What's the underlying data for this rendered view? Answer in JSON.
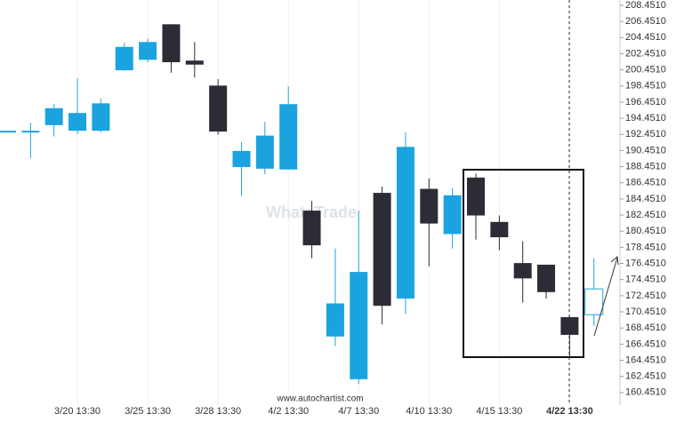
{
  "chart_data": {
    "type": "candlestick",
    "categories": [
      null,
      null,
      null,
      "3/20 13:30",
      null,
      null,
      "3/25 13:30",
      null,
      null,
      "3/28 13:30",
      null,
      null,
      "4/2 13:30",
      null,
      null,
      "4/7 13:30",
      null,
      null,
      "4/10 13:30",
      null,
      null,
      "4/15 13:30",
      null,
      null,
      "4/22 13:30"
    ],
    "open": [
      192.9,
      192.7,
      193.6,
      192.9,
      192.9,
      200.4,
      201.7,
      206.1,
      201.6,
      198.5,
      188.4,
      188.2,
      188.1,
      183.0,
      167.4,
      162.1,
      185.2,
      172.1,
      185.7,
      180.1,
      187.1,
      181.6,
      176.5,
      176.3,
      169.8
    ],
    "high": [
      192.9,
      193.9,
      196.2,
      199.4,
      196.9,
      203.8,
      204.3,
      206.1,
      203.9,
      199.3,
      191.5,
      194.0,
      198.4,
      184.2,
      178.3,
      183.0,
      186.0,
      192.7,
      187.0,
      185.8,
      187.6,
      182.4,
      179.2,
      176.3,
      169.8
    ],
    "low": [
      192.9,
      189.5,
      192.2,
      192.5,
      192.7,
      200.3,
      201.4,
      200.1,
      199.5,
      192.4,
      184.8,
      187.5,
      188.1,
      177.1,
      166.2,
      161.5,
      168.9,
      170.2,
      176.1,
      178.3,
      179.4,
      178.1,
      171.6,
      172.1,
      164.9
    ],
    "close": [
      192.9,
      192.9,
      195.7,
      195.1,
      196.3,
      203.3,
      203.9,
      201.4,
      201.1,
      192.8,
      190.4,
      192.3,
      196.2,
      178.7,
      171.5,
      175.4,
      171.2,
      190.9,
      181.4,
      184.9,
      182.4,
      179.7,
      174.6,
      172.9,
      167.6
    ],
    "projection": {
      "open": 170.1,
      "high": 177.1,
      "low": 168.7,
      "close": 173.3
    },
    "up_color": "#1ba3e0",
    "down_color": "#2b2c35",
    "ylim": [
      158.45,
      209.11
    ],
    "yticks": [
      {
        "value": 160.451,
        "label": "160.4510"
      },
      {
        "value": 162.451,
        "label": "162.4510"
      },
      {
        "value": 164.451,
        "label": "164.4510"
      },
      {
        "value": 166.451,
        "label": "166.4510"
      },
      {
        "value": 168.451,
        "label": "168.4510"
      },
      {
        "value": 170.451,
        "label": "170.4510"
      },
      {
        "value": 172.451,
        "label": "172.4510"
      },
      {
        "value": 174.451,
        "label": "174.4510"
      },
      {
        "value": 176.451,
        "label": "176.4510"
      },
      {
        "value": 178.451,
        "label": "178.4510"
      },
      {
        "value": 180.451,
        "label": "180.4510"
      },
      {
        "value": 182.451,
        "label": "182.4510"
      },
      {
        "value": 184.451,
        "label": "184.4510"
      },
      {
        "value": 186.451,
        "label": "186.4510"
      },
      {
        "value": 188.451,
        "label": "188.4510"
      },
      {
        "value": 190.451,
        "label": "190.4510"
      },
      {
        "value": 192.451,
        "label": "192.4510"
      },
      {
        "value": 194.451,
        "label": "194.4510"
      },
      {
        "value": 196.451,
        "label": "196.4510"
      },
      {
        "value": 198.451,
        "label": "198.4510"
      },
      {
        "value": 200.451,
        "label": "200.4510"
      },
      {
        "value": 202.451,
        "label": "202.4510"
      },
      {
        "value": 204.451,
        "label": "204.4510"
      },
      {
        "value": 206.451,
        "label": "206.4510"
      },
      {
        "value": 208.451,
        "label": "208.4510"
      }
    ],
    "watermark": "WhatsTrade",
    "source": "www.autochartist.com"
  }
}
